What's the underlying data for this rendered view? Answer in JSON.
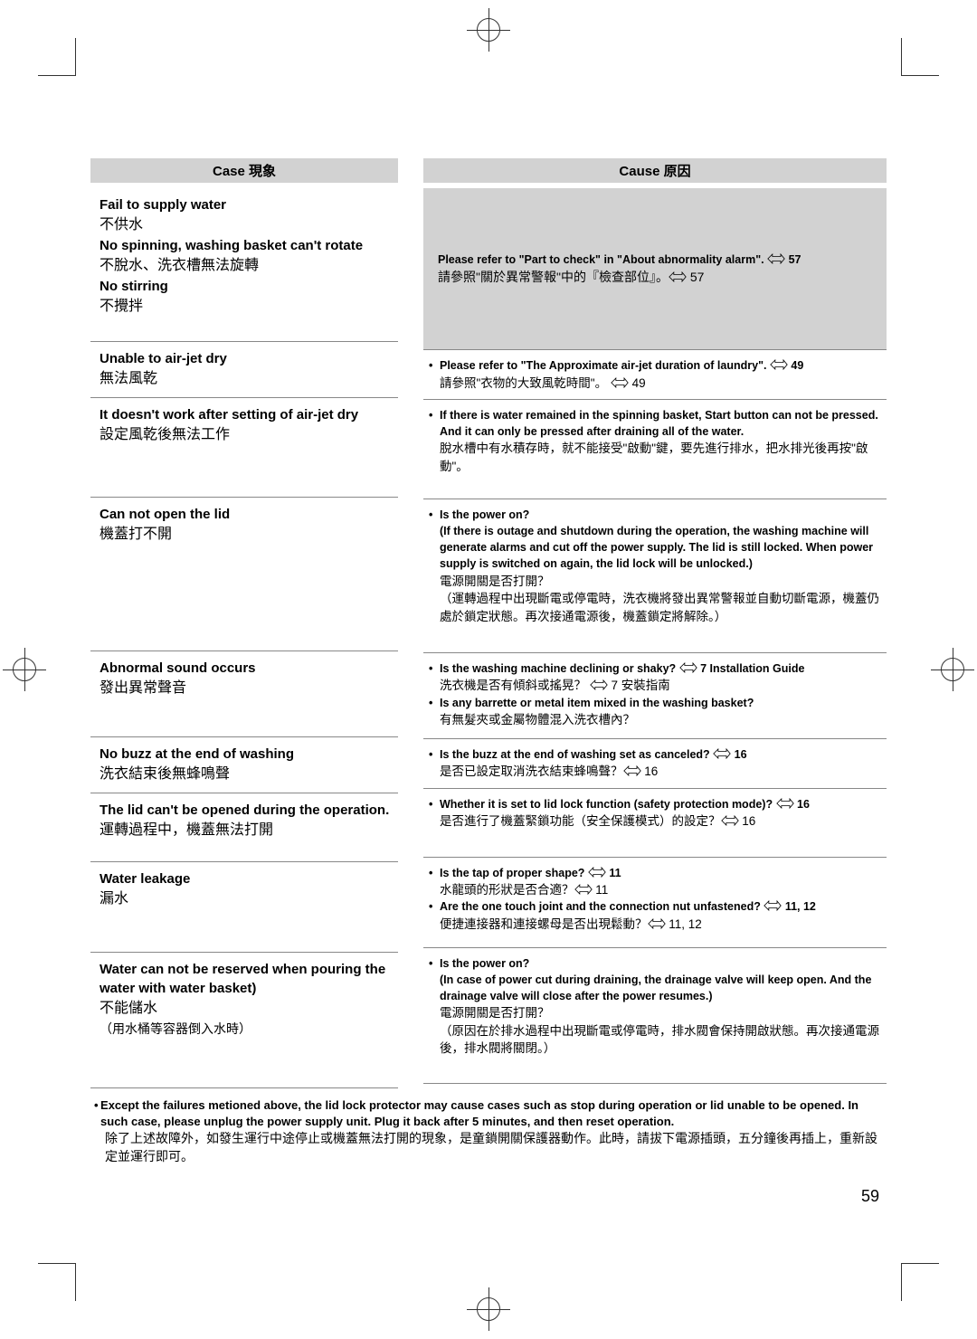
{
  "page_number": "59",
  "headers": {
    "case": "Case  現象",
    "cause": "Cause  原因"
  },
  "ref_icon": "☞",
  "rows": [
    {
      "left": {
        "lines": [
          {
            "cls": "en",
            "t": "Fail to supply water"
          },
          {
            "cls": "zh",
            "t": "不供水"
          },
          {
            "cls": "en",
            "t": "No spinning, washing basket can't rotate"
          },
          {
            "cls": "zh",
            "t": "不脫水、洗衣槽無法旋轉"
          },
          {
            "cls": "en",
            "t": "No stirring"
          },
          {
            "cls": "zh",
            "t": "不攪拌"
          }
        ]
      },
      "right": {
        "big": true,
        "lines": [
          {
            "cls": "en",
            "t": "Please refer to \"Part to check\" in \"About abnormality alarm\". ☞ 57"
          },
          {
            "cls": "zhline",
            "t": "請參照\"關於異常警報\"中的『檢查部位』。☞ 57"
          }
        ]
      },
      "hl": "h1l",
      "hr": "h1r"
    },
    {
      "left": {
        "lines": [
          {
            "cls": "en",
            "t": "Unable to air-jet dry"
          },
          {
            "cls": "zh",
            "t": "無法風乾"
          }
        ]
      },
      "right": {
        "bullets": [
          {
            "en": "Please refer to \"The Approximate air-jet duration of laundry\". ☞ 49",
            "zh": "請參照\"衣物的大致風乾時間\"。 ☞ 49"
          }
        ]
      },
      "hl": "h2l",
      "hr": "h2r"
    },
    {
      "left": {
        "lines": [
          {
            "cls": "en",
            "t": "It doesn't work after setting of air-jet dry"
          },
          {
            "cls": "zh",
            "t": "設定風乾後無法工作"
          }
        ]
      },
      "right": {
        "bullets": [
          {
            "en": "If there is water remained in the spinning basket, Start button can not be pressed. And it can only be pressed after draining all of the water.",
            "zh": "脫水槽中有水積存時，就不能接受\"啟動\"鍵，要先進行排水，把水排光後再按\"啟動\"。"
          }
        ]
      },
      "hl": "h3l",
      "hr": "h3r"
    },
    {
      "left": {
        "lines": [
          {
            "cls": "en",
            "t": "Can not open the lid"
          },
          {
            "cls": "zh",
            "t": "機蓋打不開"
          }
        ]
      },
      "right": {
        "bullets": [
          {
            "en": "Is the power on?",
            "en2": "(If there is outage and shutdown during the operation, the washing machine will generate alarms and cut off the power supply. The lid is still locked. When power supply is switched on again, the lid lock will be unlocked.)",
            "zh": "電源開關是否打開？",
            "zh2": "（運轉過程中出現斷電或停電時，洗衣機將發出異常警報並自動切斷電源，機蓋仍處於鎖定狀態。再次接通電源後，機蓋鎖定將解除。）"
          }
        ]
      },
      "hl": "h4l",
      "hr": "h4r"
    },
    {
      "left": {
        "lines": [
          {
            "cls": "en",
            "t": "Abnormal sound occurs"
          },
          {
            "cls": "zh",
            "t": "發出異常聲音"
          }
        ]
      },
      "right": {
        "bullets": [
          {
            "en": "Is the washing machine declining or shaky? ☞ 7 Installation Guide",
            "zh": "洗衣機是否有傾斜或搖晃？ ☞ 7 安裝指南"
          },
          {
            "en": "Is any barrette or metal item mixed in the washing basket?",
            "zh": "有無髮夾或金屬物體混入洗衣槽內？"
          }
        ]
      },
      "hl": "h5l",
      "hr": "h5r"
    },
    {
      "left": {
        "lines": [
          {
            "cls": "en",
            "t": "No buzz at the end of washing"
          },
          {
            "cls": "zh",
            "t": "洗衣結束後無蜂鳴聲"
          }
        ]
      },
      "right": {
        "bullets": [
          {
            "en": "Is the buzz at the end of washing set as canceled? ☞ 16",
            "zh": "是否已設定取消洗衣結束蜂鳴聲？☞ 16"
          }
        ]
      },
      "hl": "h6l",
      "hr": "h6r"
    },
    {
      "left": {
        "lines": [
          {
            "cls": "en",
            "t": "The lid can't be opened during the operation."
          },
          {
            "cls": "zh",
            "t": "運轉過程中，機蓋無法打開"
          }
        ]
      },
      "right": {
        "bullets": [
          {
            "en": "Whether it is set to lid lock function (safety protection mode)? ☞ 16",
            "zh": "是否進行了機蓋緊鎖功能（安全保護模式）的設定？☞ 16"
          }
        ]
      },
      "hl": "h7l",
      "hr": "h7r"
    },
    {
      "left": {
        "lines": [
          {
            "cls": "en",
            "t": "Water leakage"
          },
          {
            "cls": "zh",
            "t": "漏水"
          }
        ]
      },
      "right": {
        "bullets": [
          {
            "en": "Is the tap of proper shape? ☞ 11",
            "zh": "水龍頭的形狀是否合適？☞ 11"
          },
          {
            "en": "Are the one touch joint and the connection nut unfastened? ☞ 11, 12",
            "zh": "便捷連接器和連接螺母是否出現鬆動？☞ 11, 12"
          }
        ]
      },
      "hl": "h8l",
      "hr": "h8r"
    },
    {
      "left": {
        "lines": [
          {
            "cls": "en",
            "t": "Water can not be reserved when pouring the water with water basket)"
          },
          {
            "cls": "zh",
            "t": "不能儲水"
          },
          {
            "cls": "note",
            "t": "（用水桶等容器倒入水時）"
          }
        ]
      },
      "right": {
        "bullets": [
          {
            "en": "Is the power on?",
            "zh": "電源開關是否打開？",
            "en2": "(In case of power cut during draining, the drainage valve will keep open. And the drainage valve will close after the power resumes.)",
            "zh2": "（原因在於排水過程中出現斷電或停電時，排水閥會保持開啟狀態。再次接通電源後，排水閥將關閉。）"
          }
        ]
      },
      "hl": "h9l",
      "hr": "h9r"
    }
  ],
  "footer": {
    "en": "Except the failures metioned above, the lid lock protector may cause cases such as stop during operation or lid unable to be opened. In such case, please unplug the power supply unit. Plug it back after 5 minutes, and then reset operation.",
    "zh": "除了上述故障外，如發生運行中途停止或機蓋無法打開的現象，是童鎖開關保護器動作。此時，請拔下電源插頭，五分鐘後再插上，重新設定並運行即可。"
  }
}
